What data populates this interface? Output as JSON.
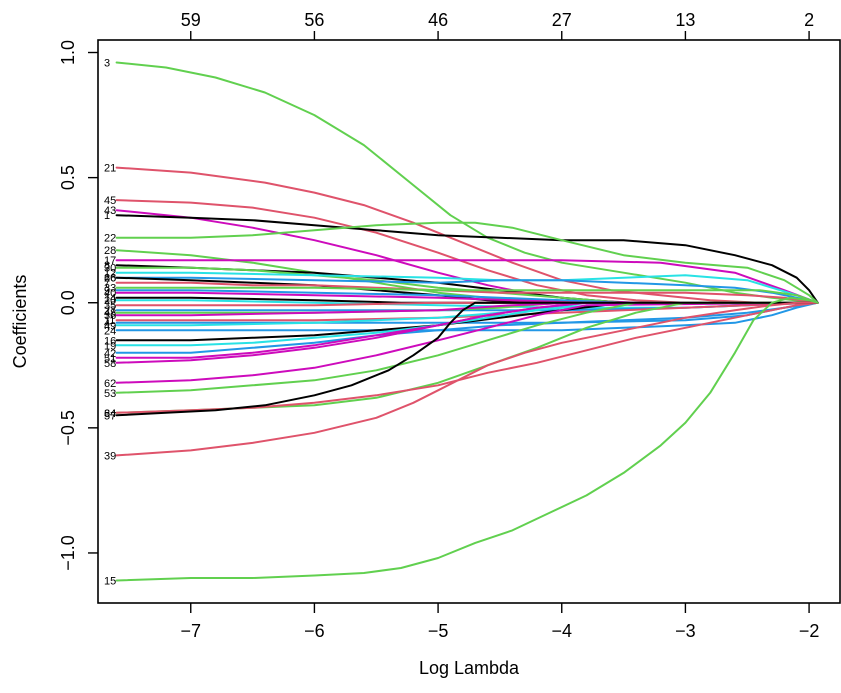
{
  "chart_data": {
    "type": "line",
    "xlabel": "Log Lambda",
    "ylabel": "Coefficients",
    "xlim": [
      -7.75,
      -1.75
    ],
    "ylim": [
      -1.2,
      1.05
    ],
    "x_ticks": [
      -7,
      -6,
      -5,
      -4,
      -3,
      -2
    ],
    "x_tick_labels": [
      "−7",
      "−6",
      "−5",
      "−4",
      "−3",
      "−2"
    ],
    "y_ticks": [
      -1.0,
      -0.5,
      0.0,
      0.5,
      1.0
    ],
    "y_tick_labels": [
      "−1.0",
      "−0.5",
      "0.0",
      "0.5",
      "1.0"
    ],
    "top_ticks": [
      {
        "x": -7.0,
        "label": "59"
      },
      {
        "x": -6.0,
        "label": "56"
      },
      {
        "x": -5.0,
        "label": "46"
      },
      {
        "x": -4.0,
        "label": "27"
      },
      {
        "x": -3.0,
        "label": "13"
      },
      {
        "x": -2.0,
        "label": "2"
      }
    ],
    "grid": false,
    "colors": {
      "black": "#000000",
      "red": "#DF536B",
      "green": "#61D04F",
      "blue": "#2297E6",
      "cyan": "#28E2E5",
      "magenta": "#CD0BBC"
    },
    "series": [
      {
        "name": "3",
        "color": "green",
        "x": [
          -7.6,
          -7.2,
          -6.8,
          -6.4,
          -6.0,
          -5.6,
          -5.2,
          -4.9,
          -4.6,
          -4.3,
          -4.0,
          -3.5,
          -3.0,
          -2.6,
          -2.3,
          -1.93
        ],
        "y": [
          0.96,
          0.94,
          0.9,
          0.84,
          0.75,
          0.63,
          0.47,
          0.35,
          0.26,
          0.2,
          0.16,
          0.12,
          0.08,
          0.04,
          0.02,
          0.0
        ]
      },
      {
        "name": "21",
        "color": "red",
        "x": [
          -7.6,
          -7.0,
          -6.4,
          -6.0,
          -5.6,
          -5.2,
          -4.8,
          -4.4,
          -4.0,
          -3.6,
          -3.2,
          -2.8,
          -2.4,
          -1.93
        ],
        "y": [
          0.54,
          0.52,
          0.48,
          0.44,
          0.39,
          0.32,
          0.24,
          0.16,
          0.09,
          0.05,
          0.03,
          0.01,
          0.0,
          0.0
        ]
      },
      {
        "name": "45",
        "color": "red",
        "x": [
          -7.6,
          -7.0,
          -6.5,
          -6.0,
          -5.5,
          -5.0,
          -4.6,
          -4.2,
          -3.8,
          -3.4,
          -3.0,
          -1.93
        ],
        "y": [
          0.41,
          0.4,
          0.38,
          0.34,
          0.28,
          0.2,
          0.13,
          0.07,
          0.03,
          0.01,
          0.0,
          0.0
        ]
      },
      {
        "name": "43",
        "color": "magenta",
        "x": [
          -7.6,
          -7.0,
          -6.5,
          -6.0,
          -5.5,
          -5.0,
          -4.6,
          -4.2,
          -3.8,
          -3.4,
          -1.93
        ],
        "y": [
          0.37,
          0.34,
          0.3,
          0.25,
          0.19,
          0.12,
          0.07,
          0.03,
          0.01,
          0.0,
          0.0
        ]
      },
      {
        "name": "1",
        "color": "black",
        "x": [
          -7.6,
          -7.0,
          -6.5,
          -6.0,
          -5.5,
          -5.0,
          -4.5,
          -4.0,
          -3.5,
          -3.0,
          -2.6,
          -2.3,
          -2.1,
          -2.0,
          -1.93
        ],
        "y": [
          0.35,
          0.34,
          0.33,
          0.31,
          0.29,
          0.27,
          0.26,
          0.25,
          0.25,
          0.23,
          0.19,
          0.15,
          0.1,
          0.05,
          0.0
        ]
      },
      {
        "name": "22",
        "color": "green",
        "x": [
          -7.6,
          -7.0,
          -6.5,
          -6.0,
          -5.5,
          -5.0,
          -4.7,
          -4.4,
          -4.0,
          -3.5,
          -3.0,
          -2.5,
          -2.2,
          -2.0,
          -1.93
        ],
        "y": [
          0.26,
          0.26,
          0.27,
          0.29,
          0.31,
          0.32,
          0.32,
          0.3,
          0.25,
          0.19,
          0.16,
          0.14,
          0.09,
          0.03,
          0.0
        ]
      },
      {
        "name": "28",
        "color": "green",
        "x": [
          -7.6,
          -7.0,
          -6.5,
          -6.0,
          -5.5,
          -5.0,
          -4.6,
          -4.2,
          -3.8,
          -1.93
        ],
        "y": [
          0.21,
          0.19,
          0.16,
          0.12,
          0.08,
          0.04,
          0.02,
          0.01,
          0.0,
          0.0
        ]
      },
      {
        "name": "17",
        "color": "magenta",
        "x": [
          -7.6,
          -7.0,
          -6.0,
          -5.0,
          -4.0,
          -3.2,
          -2.6,
          -2.2,
          -1.93
        ],
        "y": [
          0.17,
          0.17,
          0.17,
          0.17,
          0.17,
          0.16,
          0.12,
          0.05,
          0.0
        ]
      },
      {
        "name": "8",
        "color": "black",
        "x": [
          -7.6,
          -7.0,
          -6.5,
          -6.0,
          -5.5,
          -5.0,
          -4.5,
          -4.0,
          -3.5,
          -1.93
        ],
        "y": [
          0.15,
          0.14,
          0.13,
          0.12,
          0.1,
          0.08,
          0.05,
          0.02,
          0.0,
          0.0
        ]
      },
      {
        "name": "30",
        "color": "green",
        "x": [
          -7.6,
          -7.0,
          -6.5,
          -6.0,
          -5.5,
          -5.0,
          -4.5,
          -4.0,
          -3.5,
          -1.93
        ],
        "y": [
          0.14,
          0.14,
          0.13,
          0.11,
          0.09,
          0.06,
          0.04,
          0.02,
          0.0,
          0.0
        ]
      },
      {
        "name": "12",
        "color": "cyan",
        "x": [
          -7.6,
          -7.0,
          -6.0,
          -5.0,
          -4.5,
          -4.0,
          -3.5,
          -3.0,
          -2.5,
          -2.1,
          -1.93
        ],
        "y": [
          0.12,
          0.12,
          0.11,
          0.1,
          0.09,
          0.09,
          0.1,
          0.11,
          0.09,
          0.03,
          0.0
        ]
      },
      {
        "name": "26",
        "color": "blue",
        "x": [
          -7.6,
          -7.0,
          -6.0,
          -5.0,
          -4.5,
          -4.0,
          -3.5,
          -3.0,
          -2.6,
          -2.3,
          -2.1,
          -1.93
        ],
        "y": [
          0.1,
          0.1,
          0.09,
          0.08,
          0.09,
          0.09,
          0.08,
          0.07,
          0.06,
          0.04,
          0.02,
          0.0
        ]
      },
      {
        "name": "66",
        "color": "black",
        "x": [
          -7.6,
          -7.0,
          -6.5,
          -6.0,
          -5.5,
          -5.0,
          -4.6,
          -4.2,
          -1.93
        ],
        "y": [
          0.1,
          0.09,
          0.08,
          0.07,
          0.05,
          0.03,
          0.01,
          0.0,
          0.0
        ]
      },
      {
        "name": "7",
        "color": "red",
        "x": [
          -7.6,
          -7.0,
          -6.5,
          -6.0,
          -5.5,
          -5.0,
          -4.5,
          -4.0,
          -3.0,
          -2.5,
          -2.2,
          -1.93
        ],
        "y": [
          0.08,
          0.08,
          0.07,
          0.07,
          0.06,
          0.05,
          0.04,
          0.04,
          0.04,
          0.03,
          0.02,
          0.0
        ]
      },
      {
        "name": "33",
        "color": "green",
        "x": [
          -7.6,
          -7.0,
          -6.0,
          -5.0,
          -4.0,
          -3.0,
          -2.4,
          -2.1,
          -1.93
        ],
        "y": [
          0.06,
          0.06,
          0.06,
          0.05,
          0.05,
          0.05,
          0.05,
          0.03,
          0.0
        ]
      },
      {
        "name": "9",
        "color": "blue",
        "x": [
          -7.6,
          -7.0,
          -6.0,
          -5.0,
          -4.5,
          -4.0,
          -3.5,
          -1.93
        ],
        "y": [
          0.05,
          0.05,
          0.04,
          0.03,
          0.02,
          0.01,
          0.0,
          0.0
        ]
      },
      {
        "name": "40",
        "color": "magenta",
        "x": [
          -7.6,
          -7.0,
          -6.0,
          -5.0,
          -4.4,
          -3.8,
          -1.93
        ],
        "y": [
          0.04,
          0.04,
          0.03,
          0.02,
          0.01,
          0.0,
          0.0
        ]
      },
      {
        "name": "14",
        "color": "black",
        "x": [
          -7.6,
          -7.0,
          -6.0,
          -5.3,
          -4.8,
          -1.93
        ],
        "y": [
          0.02,
          0.02,
          0.01,
          0.0,
          0.0,
          0.0
        ]
      },
      {
        "name": "20",
        "color": "cyan",
        "x": [
          -7.6,
          -7.0,
          -6.0,
          -5.0,
          -4.0,
          -3.0,
          -2.5,
          -1.93
        ],
        "y": [
          0.01,
          0.01,
          0.0,
          -0.01,
          -0.02,
          -0.02,
          -0.01,
          0.0
        ]
      },
      {
        "name": "35",
        "color": "red",
        "x": [
          -7.6,
          -7.0,
          -6.0,
          -5.0,
          -4.5,
          -1.93
        ],
        "y": [
          -0.01,
          -0.01,
          -0.01,
          -0.0,
          0.0,
          0.0
        ]
      },
      {
        "name": "27",
        "color": "blue",
        "x": [
          -7.6,
          -7.0,
          -6.0,
          -5.0,
          -4.0,
          -3.0,
          -2.5,
          -1.93
        ],
        "y": [
          -0.03,
          -0.03,
          -0.03,
          -0.03,
          -0.03,
          -0.02,
          -0.01,
          0.0
        ]
      },
      {
        "name": "48",
        "color": "green",
        "x": [
          -7.6,
          -7.0,
          -6.0,
          -5.0,
          -4.5,
          -4.0,
          -1.93
        ],
        "y": [
          -0.04,
          -0.04,
          -0.04,
          -0.03,
          -0.02,
          0.0,
          0.0
        ]
      },
      {
        "name": "36",
        "color": "magenta",
        "x": [
          -7.6,
          -7.0,
          -6.0,
          -5.0,
          -4.4,
          -3.9,
          -1.93
        ],
        "y": [
          -0.05,
          -0.05,
          -0.04,
          -0.03,
          -0.01,
          0.0,
          0.0
        ]
      },
      {
        "name": "11",
        "color": "red",
        "x": [
          -7.6,
          -7.0,
          -6.0,
          -5.0,
          -4.0,
          -3.0,
          -2.5,
          -1.93
        ],
        "y": [
          -0.07,
          -0.07,
          -0.07,
          -0.06,
          -0.04,
          -0.02,
          -0.01,
          0.0
        ]
      },
      {
        "name": "4",
        "color": "blue",
        "x": [
          -7.6,
          -7.0,
          -6.0,
          -5.0,
          -4.0,
          -3.0,
          -2.5,
          -2.2,
          -1.93
        ],
        "y": [
          -0.08,
          -0.08,
          -0.08,
          -0.08,
          -0.08,
          -0.07,
          -0.05,
          -0.02,
          0.0
        ]
      },
      {
        "name": "49",
        "color": "cyan",
        "x": [
          -7.6,
          -7.0,
          -6.0,
          -5.0,
          -4.5,
          -4.0,
          -3.5,
          -1.93
        ],
        "y": [
          -0.09,
          -0.09,
          -0.08,
          -0.06,
          -0.04,
          -0.02,
          0.0,
          0.0
        ]
      },
      {
        "name": "24",
        "color": "blue",
        "x": [
          -7.6,
          -7.0,
          -6.0,
          -5.0,
          -4.5,
          -4.0,
          -3.5,
          -3.0,
          -2.6,
          -2.3,
          -2.1,
          -1.93
        ],
        "y": [
          -0.11,
          -0.11,
          -0.11,
          -0.11,
          -0.11,
          -0.11,
          -0.1,
          -0.09,
          -0.08,
          -0.05,
          -0.02,
          0.0
        ]
      },
      {
        "name": "16",
        "color": "black",
        "x": [
          -7.6,
          -7.0,
          -6.5,
          -6.0,
          -5.5,
          -5.0,
          -4.5,
          -4.0,
          -3.5,
          -1.93
        ],
        "y": [
          -0.15,
          -0.15,
          -0.14,
          -0.13,
          -0.11,
          -0.09,
          -0.06,
          -0.03,
          0.0,
          0.0
        ]
      },
      {
        "name": "19",
        "color": "cyan",
        "x": [
          -7.6,
          -7.0,
          -6.5,
          -6.0,
          -5.5,
          -5.0,
          -4.6,
          -4.2,
          -3.8,
          -1.93
        ],
        "y": [
          -0.17,
          -0.17,
          -0.16,
          -0.14,
          -0.12,
          -0.09,
          -0.06,
          -0.03,
          0.0,
          0.0
        ]
      },
      {
        "name": "42",
        "color": "blue",
        "x": [
          -7.6,
          -7.0,
          -6.5,
          -6.0,
          -5.5,
          -5.0,
          -4.5,
          -4.0,
          -3.5,
          -3.0,
          -2.5,
          -2.2,
          -1.93
        ],
        "y": [
          -0.2,
          -0.2,
          -0.18,
          -0.16,
          -0.13,
          -0.11,
          -0.09,
          -0.08,
          -0.07,
          -0.06,
          -0.04,
          -0.02,
          0.0
        ]
      },
      {
        "name": "51",
        "color": "magenta",
        "x": [
          -7.6,
          -7.0,
          -6.5,
          -6.0,
          -5.5,
          -5.0,
          -4.6,
          -4.2,
          -3.8,
          -1.93
        ],
        "y": [
          -0.22,
          -0.22,
          -0.2,
          -0.17,
          -0.13,
          -0.09,
          -0.05,
          -0.02,
          0.0,
          0.0
        ]
      },
      {
        "name": "58",
        "color": "magenta",
        "x": [
          -7.6,
          -7.0,
          -6.5,
          -6.0,
          -5.5,
          -5.0,
          -4.6,
          -4.2,
          -3.8,
          -1.93
        ],
        "y": [
          -0.24,
          -0.23,
          -0.21,
          -0.18,
          -0.14,
          -0.09,
          -0.05,
          -0.02,
          0.0,
          0.0
        ]
      },
      {
        "name": "62",
        "color": "magenta",
        "x": [
          -7.6,
          -7.0,
          -6.5,
          -6.0,
          -5.5,
          -5.0,
          -4.6,
          -4.2,
          -3.8,
          -1.93
        ],
        "y": [
          -0.32,
          -0.31,
          -0.29,
          -0.26,
          -0.21,
          -0.15,
          -0.1,
          -0.05,
          -0.01,
          0.0
        ]
      },
      {
        "name": "53",
        "color": "green",
        "x": [
          -7.6,
          -7.0,
          -6.5,
          -6.0,
          -5.5,
          -5.0,
          -4.6,
          -4.2,
          -3.8,
          -3.4,
          -1.93
        ],
        "y": [
          -0.36,
          -0.35,
          -0.33,
          -0.31,
          -0.27,
          -0.21,
          -0.15,
          -0.09,
          -0.04,
          0.0,
          0.0
        ]
      },
      {
        "name": "64",
        "color": "green",
        "x": [
          -7.6,
          -7.0,
          -6.5,
          -6.0,
          -5.5,
          -5.0,
          -4.6,
          -4.2,
          -3.8,
          -3.4,
          -3.0,
          -1.93
        ],
        "y": [
          -0.44,
          -0.43,
          -0.42,
          -0.41,
          -0.38,
          -0.32,
          -0.25,
          -0.18,
          -0.1,
          -0.04,
          0.0,
          0.0
        ]
      },
      {
        "name": "34",
        "color": "red",
        "x": [
          -7.6,
          -7.0,
          -6.5,
          -6.0,
          -5.5,
          -5.0,
          -4.6,
          -4.2,
          -3.8,
          -3.4,
          -3.0,
          -2.6,
          -2.3,
          -2.1,
          -1.93
        ],
        "y": [
          -0.44,
          -0.43,
          -0.42,
          -0.4,
          -0.37,
          -0.33,
          -0.28,
          -0.24,
          -0.19,
          -0.14,
          -0.1,
          -0.06,
          -0.03,
          -0.01,
          0.0
        ]
      },
      {
        "name": "57",
        "color": "black",
        "x": [
          -7.6,
          -7.2,
          -6.8,
          -6.4,
          -6.0,
          -5.7,
          -5.4,
          -5.2,
          -5.0,
          -4.9,
          -4.8,
          -4.7,
          -1.93
        ],
        "y": [
          -0.45,
          -0.44,
          -0.43,
          -0.41,
          -0.37,
          -0.33,
          -0.27,
          -0.21,
          -0.14,
          -0.08,
          -0.03,
          0.0,
          0.0
        ]
      },
      {
        "name": "39",
        "color": "red",
        "x": [
          -7.6,
          -7.0,
          -6.5,
          -6.0,
          -5.5,
          -5.2,
          -5.0,
          -4.8,
          -4.6,
          -4.3,
          -4.0,
          -3.7,
          -3.4,
          -3.0,
          -2.6,
          -2.3,
          -2.1,
          -1.93
        ],
        "y": [
          -0.61,
          -0.59,
          -0.56,
          -0.52,
          -0.46,
          -0.4,
          -0.35,
          -0.3,
          -0.25,
          -0.2,
          -0.16,
          -0.13,
          -0.1,
          -0.06,
          -0.03,
          -0.01,
          0.0,
          0.0
        ]
      },
      {
        "name": "15",
        "color": "green",
        "x": [
          -7.6,
          -7.0,
          -6.5,
          -6.0,
          -5.6,
          -5.3,
          -5.0,
          -4.7,
          -4.4,
          -4.1,
          -3.8,
          -3.5,
          -3.2,
          -3.0,
          -2.8,
          -2.6,
          -2.45,
          -2.3,
          -2.15,
          -2.0,
          -1.93
        ],
        "y": [
          -1.11,
          -1.1,
          -1.1,
          -1.09,
          -1.08,
          -1.06,
          -1.02,
          -0.96,
          -0.91,
          -0.84,
          -0.77,
          -0.68,
          -0.57,
          -0.48,
          -0.36,
          -0.2,
          -0.07,
          0.0,
          0.02,
          0.01,
          0.0
        ]
      }
    ]
  }
}
